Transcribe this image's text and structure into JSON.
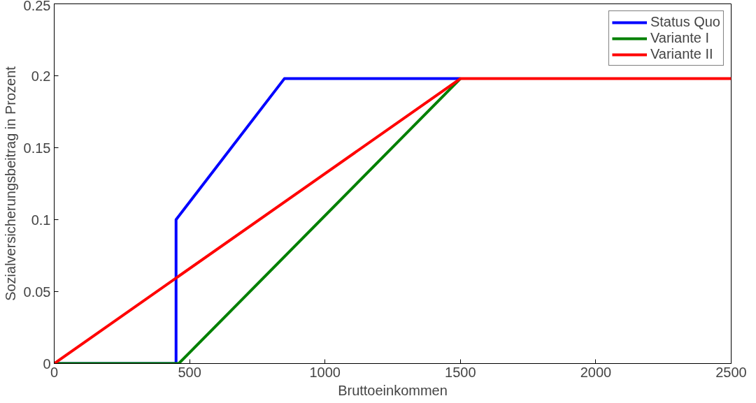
{
  "chart_data": {
    "type": "line",
    "xlabel": "Bruttoeinkommen",
    "ylabel": "Sozialversicherungsbeitrag in Prozent",
    "xlim": [
      0,
      2500
    ],
    "ylim": [
      0,
      0.25
    ],
    "xticks": [
      0,
      500,
      1000,
      1500,
      2000,
      2500
    ],
    "yticks": [
      0,
      0.05,
      0.1,
      0.15,
      0.2,
      0.25
    ],
    "grid": false,
    "legend": "top right",
    "line_style": "solid",
    "marker": "none",
    "series": [
      {
        "name": "Status Quo",
        "color": "#0000ff",
        "x": [
          0,
          450,
          450,
          850,
          1500
        ],
        "values": [
          0,
          0,
          0.1,
          0.198,
          0.198
        ]
      },
      {
        "name": "Variante I",
        "color": "#008000",
        "x": [
          0,
          460,
          1500
        ],
        "values": [
          0,
          0,
          0.198
        ]
      },
      {
        "name": "Variante II",
        "color": "#ff0000",
        "x": [
          0,
          1500,
          2500
        ],
        "values": [
          0,
          0.198,
          0.198
        ]
      }
    ]
  }
}
